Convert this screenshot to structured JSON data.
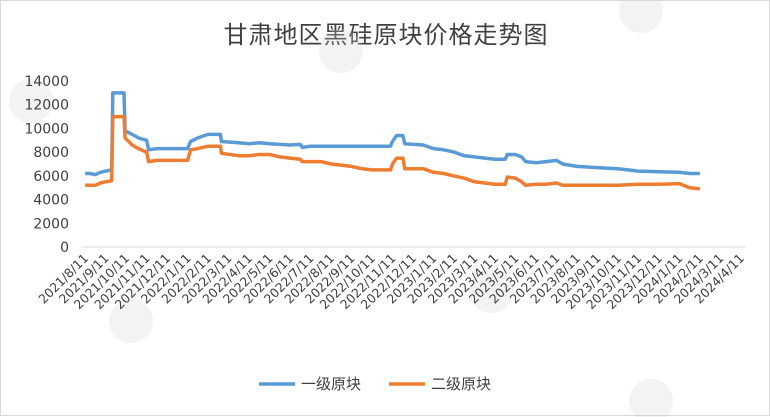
{
  "chart_data": {
    "type": "line",
    "title": "甘肃地区黑硅原块价格走势图",
    "ylim": [
      0,
      14000
    ],
    "yticks": [
      0,
      2000,
      4000,
      6000,
      8000,
      10000,
      12000,
      14000
    ],
    "grid": false,
    "legend_position": "bottom",
    "x_ticks": [
      "2021/8/11",
      "2021/9/11",
      "2021/10/11",
      "2021/11/11",
      "2021/12/11",
      "2022/1/11",
      "2022/2/11",
      "2022/3/11",
      "2022/4/11",
      "2022/5/11",
      "2022/6/11",
      "2022/7/11",
      "2022/8/11",
      "2022/9/11",
      "2022/10/11",
      "2022/11/11",
      "2022/12/11",
      "2023/1/11",
      "2023/2/11",
      "2023/3/11",
      "2023/4/11",
      "2023/5/11",
      "2023/6/11",
      "2023/7/11",
      "2023/8/11",
      "2023/9/11",
      "2023/10/11",
      "2023/11/11",
      "2023/12/11",
      "2024/1/11",
      "2024/2/11",
      "2024/3/11",
      "2024/4/11"
    ],
    "series": [
      {
        "name": "一级原块",
        "color": "#5B9BD5",
        "points": [
          [
            0,
            6200
          ],
          [
            0.25,
            6200
          ],
          [
            0.5,
            6100
          ],
          [
            0.75,
            6300
          ],
          [
            1,
            6400
          ],
          [
            1.3,
            6500
          ],
          [
            1.35,
            13000
          ],
          [
            1.9,
            13000
          ],
          [
            1.95,
            9800
          ],
          [
            2.3,
            9500
          ],
          [
            2.6,
            9200
          ],
          [
            3,
            9000
          ],
          [
            3.1,
            8200
          ],
          [
            3.5,
            8300
          ],
          [
            5,
            8300
          ],
          [
            5.15,
            8900
          ],
          [
            5.5,
            9200
          ],
          [
            6,
            9500
          ],
          [
            6.6,
            9500
          ],
          [
            6.65,
            8900
          ],
          [
            7.5,
            8800
          ],
          [
            8,
            8700
          ],
          [
            8.5,
            8800
          ],
          [
            9,
            8700
          ],
          [
            10,
            8600
          ],
          [
            10.5,
            8650
          ],
          [
            10.6,
            8400
          ],
          [
            11,
            8500
          ],
          [
            14,
            8500
          ],
          [
            14.5,
            8500
          ],
          [
            14.9,
            8500
          ],
          [
            15,
            8900
          ],
          [
            15.2,
            9400
          ],
          [
            15.5,
            9400
          ],
          [
            15.6,
            8700
          ],
          [
            16.5,
            8600
          ],
          [
            17,
            8300
          ],
          [
            17.5,
            8200
          ],
          [
            18,
            8000
          ],
          [
            18.5,
            7700
          ],
          [
            19,
            7600
          ],
          [
            19.5,
            7500
          ],
          [
            20,
            7400
          ],
          [
            20.5,
            7400
          ],
          [
            20.6,
            7800
          ],
          [
            21,
            7800
          ],
          [
            21.3,
            7600
          ],
          [
            21.5,
            7200
          ],
          [
            22,
            7100
          ],
          [
            22.5,
            7200
          ],
          [
            23,
            7300
          ],
          [
            23.3,
            7000
          ],
          [
            24,
            6800
          ],
          [
            25,
            6700
          ],
          [
            26,
            6600
          ],
          [
            27,
            6400
          ],
          [
            28,
            6350
          ],
          [
            29,
            6300
          ],
          [
            29.5,
            6200
          ],
          [
            30,
            6200
          ]
        ]
      },
      {
        "name": "二级原块",
        "color": "#ED7D31",
        "points": [
          [
            0,
            5200
          ],
          [
            0.5,
            5200
          ],
          [
            0.75,
            5400
          ],
          [
            1,
            5500
          ],
          [
            1.3,
            5600
          ],
          [
            1.35,
            11000
          ],
          [
            1.9,
            11000
          ],
          [
            1.95,
            9200
          ],
          [
            2.3,
            8600
          ],
          [
            2.6,
            8300
          ],
          [
            3,
            8000
          ],
          [
            3.1,
            7200
          ],
          [
            3.5,
            7300
          ],
          [
            5,
            7300
          ],
          [
            5.15,
            8200
          ],
          [
            5.5,
            8300
          ],
          [
            6,
            8500
          ],
          [
            6.6,
            8500
          ],
          [
            6.65,
            7900
          ],
          [
            7.5,
            7700
          ],
          [
            8,
            7700
          ],
          [
            8.5,
            7800
          ],
          [
            9,
            7800
          ],
          [
            9.5,
            7600
          ],
          [
            10,
            7500
          ],
          [
            10.5,
            7400
          ],
          [
            10.6,
            7200
          ],
          [
            11,
            7200
          ],
          [
            11.5,
            7200
          ],
          [
            12,
            7000
          ],
          [
            13,
            6800
          ],
          [
            13.5,
            6600
          ],
          [
            14,
            6500
          ],
          [
            14.5,
            6500
          ],
          [
            14.9,
            6500
          ],
          [
            15,
            7000
          ],
          [
            15.2,
            7500
          ],
          [
            15.5,
            7500
          ],
          [
            15.6,
            6600
          ],
          [
            16.5,
            6600
          ],
          [
            17,
            6300
          ],
          [
            17.5,
            6200
          ],
          [
            18,
            6000
          ],
          [
            18.5,
            5800
          ],
          [
            19,
            5500
          ],
          [
            19.5,
            5400
          ],
          [
            20,
            5300
          ],
          [
            20.5,
            5300
          ],
          [
            20.6,
            5900
          ],
          [
            21,
            5800
          ],
          [
            21.3,
            5500
          ],
          [
            21.5,
            5200
          ],
          [
            22,
            5300
          ],
          [
            22.5,
            5300
          ],
          [
            23,
            5400
          ],
          [
            23.3,
            5200
          ],
          [
            24,
            5200
          ],
          [
            25,
            5200
          ],
          [
            26,
            5200
          ],
          [
            27,
            5300
          ],
          [
            28,
            5300
          ],
          [
            29,
            5350
          ],
          [
            29.5,
            5000
          ],
          [
            30,
            4900
          ]
        ]
      }
    ]
  }
}
